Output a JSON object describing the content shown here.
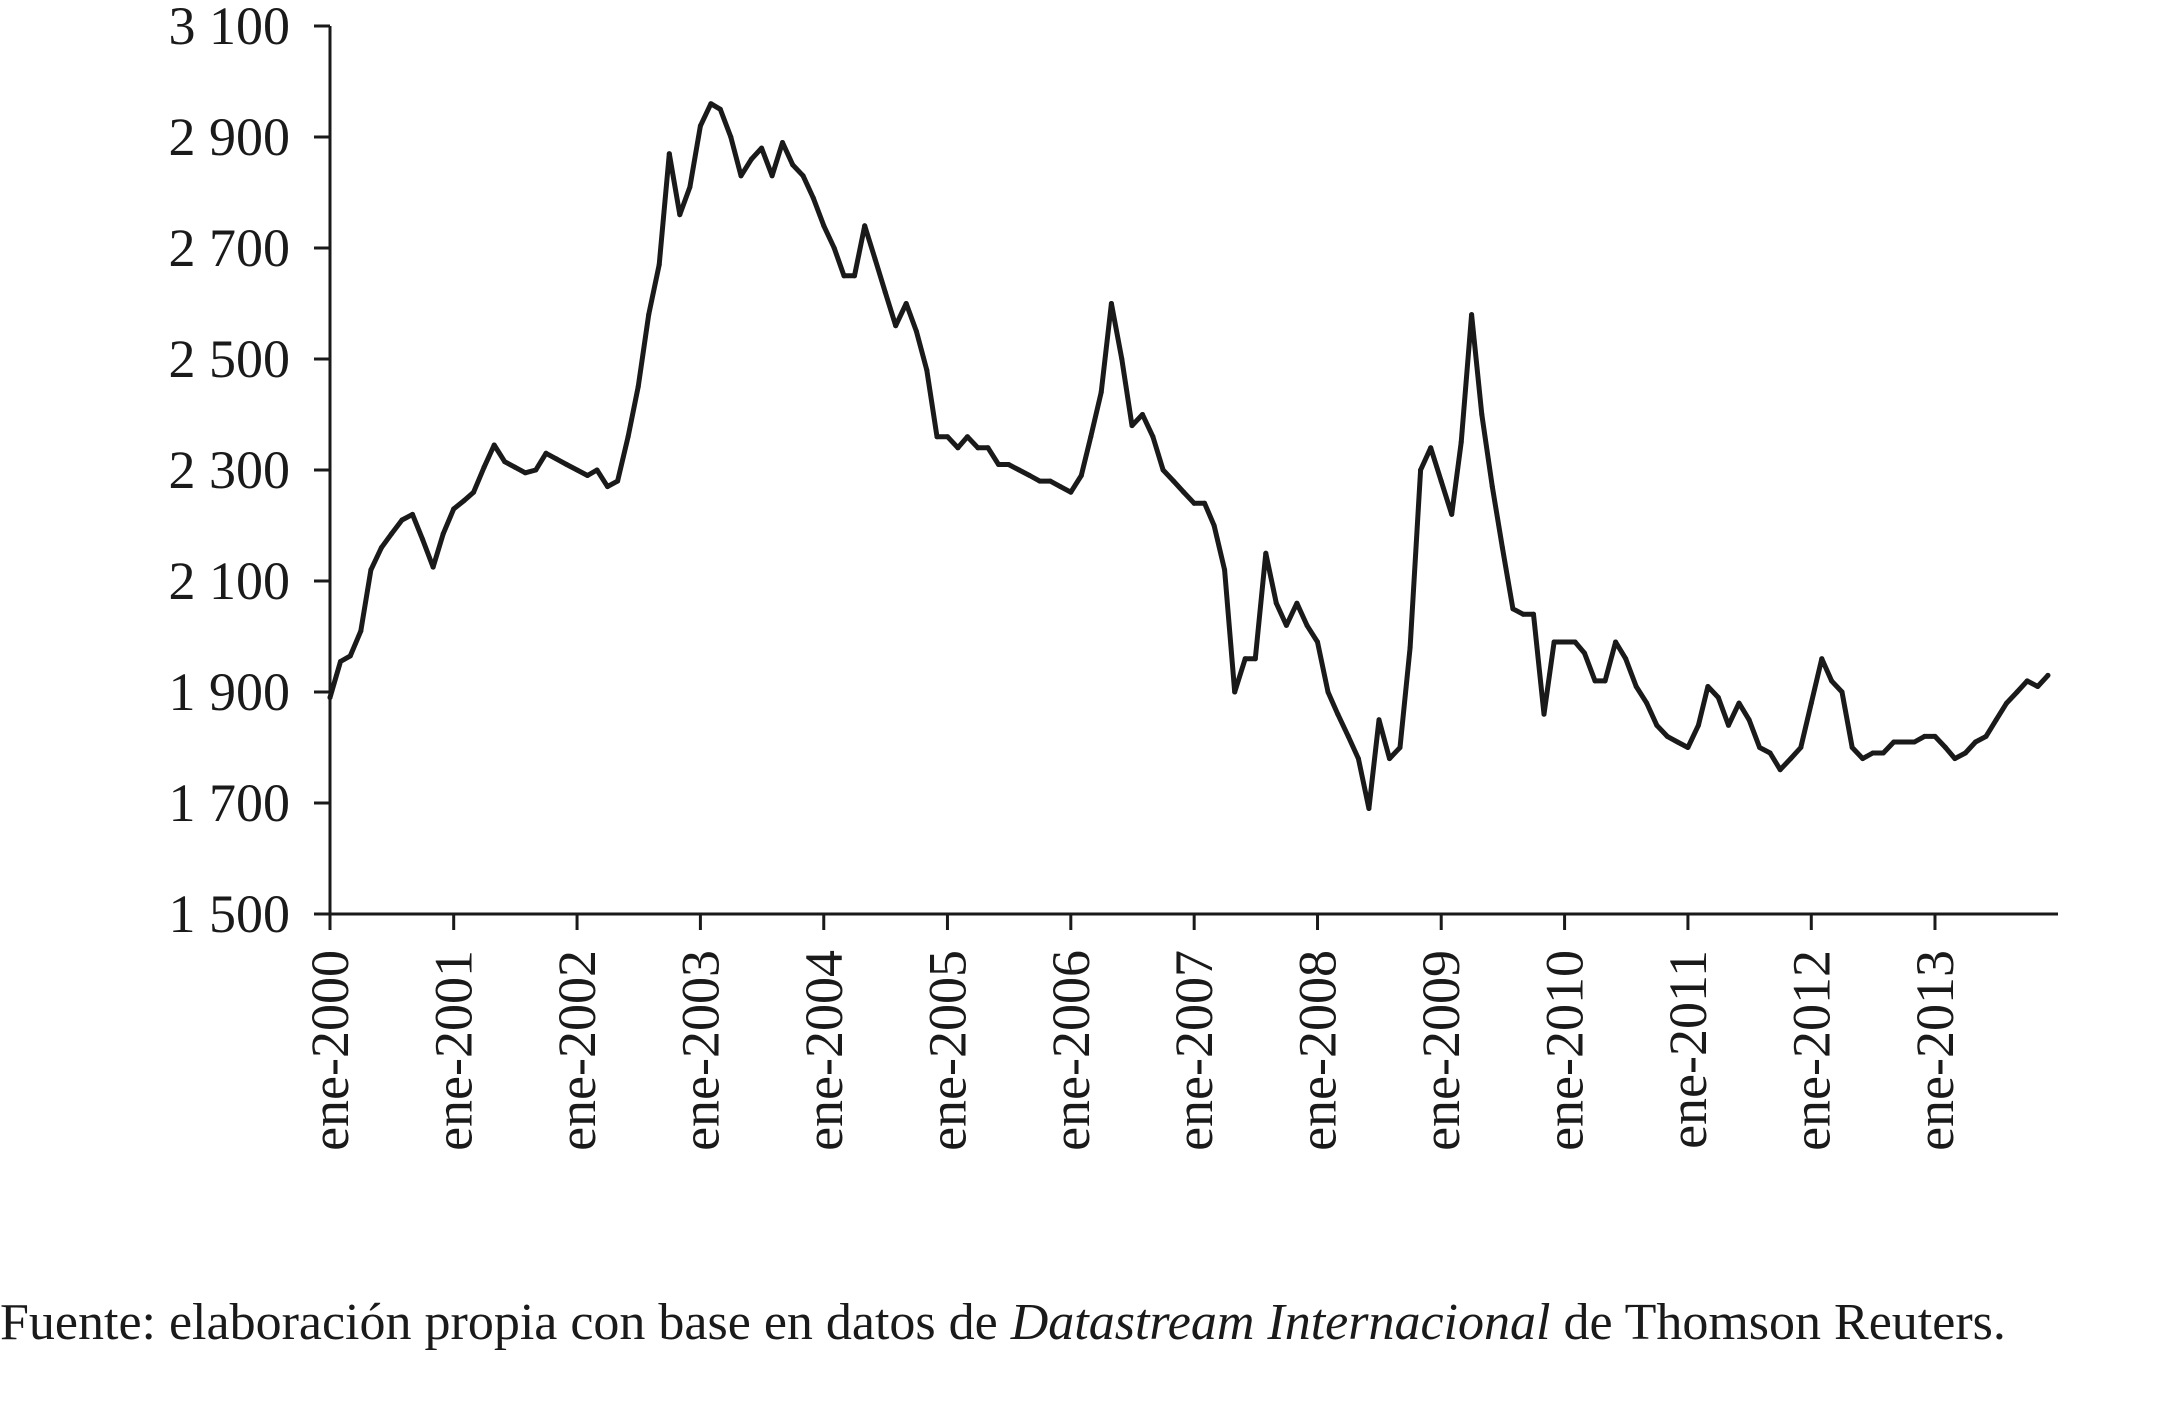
{
  "chart_data": {
    "type": "line",
    "title": "",
    "xlabel": "",
    "ylabel": "",
    "ylim": [
      1500,
      3100
    ],
    "yticks": [
      1500,
      1700,
      1900,
      2100,
      2300,
      2500,
      2700,
      2900,
      3100
    ],
    "ytick_labels": [
      "1 500",
      "1 700",
      "1 900",
      "2 100",
      "2 300",
      "2 500",
      "2 700",
      "2 900",
      "3 100"
    ],
    "xlim": [
      "2000-01-01",
      "2013-12-31"
    ],
    "xticks": [
      "2000-01-01",
      "2001-01-01",
      "2002-01-01",
      "2003-01-01",
      "2004-01-01",
      "2005-01-01",
      "2006-01-01",
      "2007-01-01",
      "2008-01-01",
      "2009-01-01",
      "2010-01-01",
      "2011-01-01",
      "2012-01-01",
      "2013-01-01"
    ],
    "xtick_labels": [
      "ene-2000",
      "ene-2001",
      "ene-2002",
      "ene-2003",
      "ene-2004",
      "ene-2005",
      "ene-2006",
      "ene-2007",
      "ene-2008",
      "ene-2009",
      "ene-2010",
      "ene-2011",
      "ene-2012",
      "ene-2013"
    ],
    "grid": false,
    "legend": "none",
    "line_color": "#1a1a1a",
    "series": [
      {
        "x": [
          "2000-01-01",
          "2000-02-01",
          "2000-03-01",
          "2000-04-01",
          "2000-05-01",
          "2000-06-01",
          "2000-07-01",
          "2000-08-01",
          "2000-09-01",
          "2000-10-01",
          "2000-11-01",
          "2000-12-01",
          "2001-01-01",
          "2001-02-01",
          "2001-03-01",
          "2001-04-01",
          "2001-05-01",
          "2001-06-01",
          "2001-07-01",
          "2001-08-01",
          "2001-09-01",
          "2001-10-01",
          "2001-11-01",
          "2001-12-01",
          "2002-01-01",
          "2002-02-01",
          "2002-03-01",
          "2002-04-01",
          "2002-05-01",
          "2002-06-01",
          "2002-07-01",
          "2002-08-01",
          "2002-09-01",
          "2002-10-01",
          "2002-11-01",
          "2002-12-01",
          "2003-01-01",
          "2003-02-01",
          "2003-03-01",
          "2003-04-01",
          "2003-05-01",
          "2003-06-01",
          "2003-07-01",
          "2003-08-01",
          "2003-09-01",
          "2003-10-01",
          "2003-11-01",
          "2003-12-01",
          "2004-01-01",
          "2004-02-01",
          "2004-03-01",
          "2004-04-01",
          "2004-05-01",
          "2004-06-01",
          "2004-07-01",
          "2004-08-01",
          "2004-09-01",
          "2004-10-01",
          "2004-11-01",
          "2004-12-01",
          "2005-01-01",
          "2005-02-01",
          "2005-03-01",
          "2005-04-01",
          "2005-05-01",
          "2005-06-01",
          "2005-07-01",
          "2005-08-01",
          "2005-09-01",
          "2005-10-01",
          "2005-11-01",
          "2005-12-01",
          "2006-01-01",
          "2006-02-01",
          "2006-03-01",
          "2006-04-01",
          "2006-05-01",
          "2006-06-01",
          "2006-07-01",
          "2006-08-01",
          "2006-09-01",
          "2006-10-01",
          "2006-11-01",
          "2006-12-01",
          "2007-01-01",
          "2007-02-01",
          "2007-03-01",
          "2007-04-01",
          "2007-05-01",
          "2007-06-01",
          "2007-07-01",
          "2007-08-01",
          "2007-09-01",
          "2007-10-01",
          "2007-11-01",
          "2007-12-01",
          "2008-01-01",
          "2008-02-01",
          "2008-03-01",
          "2008-04-01",
          "2008-05-01",
          "2008-06-01",
          "2008-07-01",
          "2008-08-01",
          "2008-09-01",
          "2008-10-01",
          "2008-11-01",
          "2008-12-01",
          "2009-01-01",
          "2009-02-01",
          "2009-03-01",
          "2009-04-01",
          "2009-05-01",
          "2009-06-01",
          "2009-07-01",
          "2009-08-01",
          "2009-09-01",
          "2009-10-01",
          "2009-11-01",
          "2009-12-01",
          "2010-01-01",
          "2010-02-01",
          "2010-03-01",
          "2010-04-01",
          "2010-05-01",
          "2010-06-01",
          "2010-07-01",
          "2010-08-01",
          "2010-09-01",
          "2010-10-01",
          "2010-11-01",
          "2010-12-01",
          "2011-01-01",
          "2011-02-01",
          "2011-03-01",
          "2011-04-01",
          "2011-05-01",
          "2011-06-01",
          "2011-07-01",
          "2011-08-01",
          "2011-09-01",
          "2011-10-01",
          "2011-11-01",
          "2011-12-01",
          "2012-01-01",
          "2012-02-01",
          "2012-03-01",
          "2012-04-01",
          "2012-05-01",
          "2012-06-01",
          "2012-07-01",
          "2012-08-01",
          "2012-09-01",
          "2012-10-01",
          "2012-11-01",
          "2012-12-01",
          "2013-01-01",
          "2013-02-01",
          "2013-03-01",
          "2013-04-01",
          "2013-05-01",
          "2013-06-01",
          "2013-07-01",
          "2013-08-01",
          "2013-09-01",
          "2013-10-01",
          "2013-11-01",
          "2013-12-01"
        ],
        "y": [
          1890,
          1955,
          1965,
          2010,
          2120,
          2160,
          2185,
          2210,
          2220,
          2175,
          2125,
          2185,
          2230,
          2245,
          2260,
          2305,
          2345,
          2315,
          2305,
          2295,
          2300,
          2330,
          2320,
          2310,
          2300,
          2290,
          2300,
          2270,
          2280,
          2360,
          2450,
          2580,
          2670,
          2870,
          2760,
          2810,
          2920,
          2960,
          2950,
          2900,
          2830,
          2860,
          2880,
          2830,
          2890,
          2850,
          2830,
          2790,
          2740,
          2700,
          2650,
          2650,
          2740,
          2680,
          2620,
          2560,
          2600,
          2550,
          2480,
          2360,
          2360,
          2340,
          2360,
          2340,
          2340,
          2310,
          2310,
          2300,
          2290,
          2280,
          2280,
          2270,
          2260,
          2290,
          2360,
          2440,
          2600,
          2500,
          2380,
          2400,
          2360,
          2300,
          2280,
          2260,
          2240,
          2240,
          2200,
          2120,
          1900,
          1960,
          1960,
          2150,
          2060,
          2020,
          2060,
          2020,
          1990,
          1900,
          1860,
          1820,
          1780,
          1690,
          1850,
          1780,
          1800,
          1980,
          2300,
          2340,
          2280,
          2220,
          2350,
          2580,
          2400,
          2270,
          2160,
          2050,
          2040,
          2040,
          1860,
          1990,
          1990,
          1990,
          1970,
          1920,
          1920,
          1990,
          1960,
          1910,
          1880,
          1840,
          1820,
          1810,
          1800,
          1840,
          1910,
          1890,
          1840,
          1880,
          1850,
          1800,
          1790,
          1760,
          1780,
          1800,
          1880,
          1960,
          1920,
          1900,
          1800,
          1780,
          1790,
          1790,
          1810,
          1810,
          1810,
          1820,
          1820,
          1800,
          1780,
          1790,
          1810,
          1820,
          1850,
          1880,
          1900,
          1920,
          1910,
          1930
        ]
      }
    ]
  },
  "footer": {
    "source_pre": "Fuente: elaboración propia con base en datos de ",
    "source_italic": "Datastream Internacional",
    "source_post": " de Thomson Reuters."
  }
}
